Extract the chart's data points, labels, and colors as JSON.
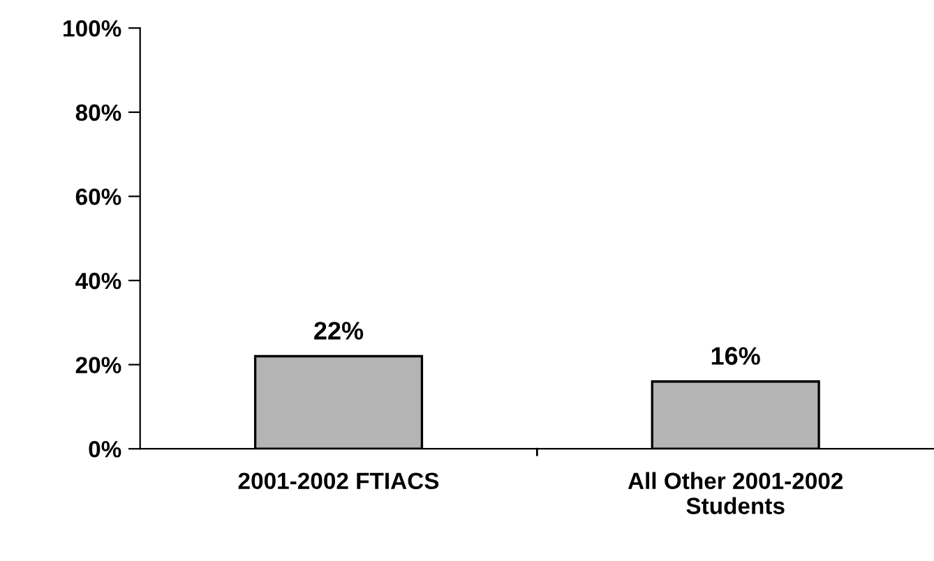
{
  "chart_data": {
    "type": "bar",
    "categories": [
      "2001-2002 FTIACS",
      "All Other 2001-2002\nStudents"
    ],
    "values": [
      22,
      16
    ],
    "color": "#b4b4b4",
    "value_labels": [
      "22%",
      "16%"
    ],
    "ylim": [
      0,
      100
    ],
    "yticks": [
      {
        "value": 0,
        "label": "0%"
      },
      {
        "value": 20,
        "label": "20%"
      },
      {
        "value": 40,
        "label": "40%"
      },
      {
        "value": 60,
        "label": "60%"
      },
      {
        "value": 80,
        "label": "80%"
      },
      {
        "value": 100,
        "label": "100%"
      }
    ],
    "grid": false,
    "legend": false
  }
}
